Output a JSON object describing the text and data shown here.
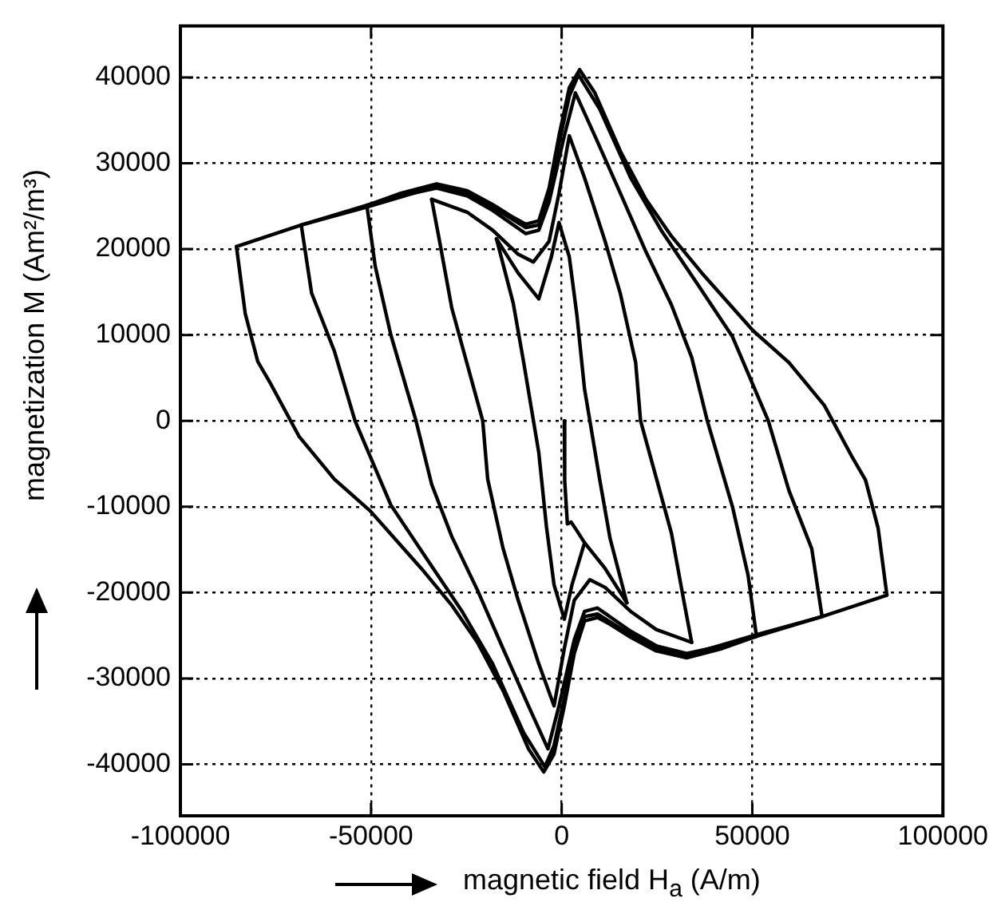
{
  "chart_data": {
    "type": "line",
    "xlabel": "magnetic field H$_{a}$ (A/m)",
    "ylabel": "magnetization M (Am²/m³)",
    "xlim": [
      -100000,
      100000
    ],
    "xticks": [
      -100000,
      -50000,
      0,
      50000,
      100000
    ],
    "ylim": [
      -46000,
      46000
    ],
    "yticks": [
      -40000,
      -30000,
      -20000,
      -10000,
      0,
      10000,
      20000,
      30000,
      40000
    ],
    "grid": true,
    "legend": false,
    "marker": "none",
    "line_style": "solid",
    "series": [
      {
        "color": "#000000",
        "x": [
          -85300,
          -68300,
          -51100,
          -42200,
          -32800,
          -24800,
          -18100,
          -12700,
          -9400,
          -6000,
          -3300,
          -700,
          2000,
          4700,
          8700,
          15400,
          22100,
          28800,
          36800,
          50200,
          59600,
          68900,
          76300,
          79700,
          83000,
          85300
        ],
        "values": [
          20300,
          22800,
          25100,
          26500,
          27600,
          26800,
          25200,
          23700,
          22900,
          23300,
          27100,
          33200,
          38800,
          40900,
          38200,
          31400,
          25800,
          21500,
          17200,
          10500,
          6800,
          1800,
          -4300,
          -6900,
          -12500,
          -20300
        ]
      },
      {
        "color": "#000000",
        "x": [
          -85300,
          -83000,
          -79700,
          -76300,
          -68900,
          -59600,
          -50200,
          -36800,
          -28800,
          -22100,
          -15400,
          -8700,
          -4700,
          -2000,
          700,
          3300,
          6000,
          9400,
          12700,
          18100,
          24800,
          32800,
          42200,
          51100,
          68300,
          85300
        ],
        "values": [
          20300,
          12500,
          6900,
          4300,
          -1800,
          -6800,
          -10500,
          -17200,
          -21500,
          -25800,
          -31400,
          -38200,
          -40900,
          -38800,
          -33200,
          -27100,
          -23300,
          -22900,
          -23700,
          -25200,
          -26800,
          -27600,
          -26500,
          -25100,
          -22800,
          -20300
        ]
      },
      {
        "color": "#000000",
        "x": [
          -68300,
          -51100,
          -32800,
          -24800,
          -18100,
          -9400,
          -6000,
          -3300,
          -700,
          2000,
          4400,
          10000,
          18100,
          26100,
          35500,
          44800,
          54200,
          59600,
          65600,
          68300
        ],
        "values": [
          22800,
          24900,
          27300,
          26500,
          24900,
          22500,
          22800,
          26500,
          32300,
          37800,
          40300,
          36300,
          28300,
          22200,
          16000,
          9800,
          0,
          -8100,
          -14900,
          -22800
        ]
      },
      {
        "color": "#000000",
        "x": [
          -68300,
          -65600,
          -59600,
          -54200,
          -44800,
          -35500,
          -26100,
          -18100,
          -10000,
          -4400,
          -2000,
          700,
          3300,
          6000,
          9400,
          18100,
          24800,
          32800,
          51100,
          68300
        ],
        "values": [
          22800,
          14900,
          8100,
          0,
          -9800,
          -16000,
          -22200,
          -28300,
          -36300,
          -40300,
          -37800,
          -32300,
          -26500,
          -22800,
          -22500,
          -24900,
          -26500,
          -27300,
          -24900,
          -22800
        ]
      },
      {
        "color": "#000000",
        "x": [
          -51100,
          -42200,
          -32800,
          -24800,
          -18100,
          -9400,
          -6000,
          -3300,
          700,
          3600,
          8700,
          15400,
          22100,
          28800,
          34100,
          38200,
          44800,
          48900,
          51100
        ],
        "values": [
          25100,
          26200,
          27100,
          26200,
          24500,
          21800,
          22200,
          25500,
          33200,
          38200,
          33200,
          26500,
          19700,
          13500,
          7400,
          0,
          -10000,
          -18000,
          -25100
        ]
      },
      {
        "color": "#000000",
        "x": [
          -51100,
          -48900,
          -44800,
          -38200,
          -34100,
          -28800,
          -22100,
          -15400,
          -8700,
          -3600,
          -700,
          3300,
          6000,
          9400,
          18100,
          24800,
          32800,
          42200,
          51100
        ],
        "values": [
          25100,
          18000,
          10000,
          0,
          -7400,
          -13500,
          -19700,
          -26500,
          -33200,
          -38200,
          -33200,
          -25500,
          -22200,
          -21800,
          -24500,
          -26200,
          -27100,
          -26200,
          -25100
        ]
      },
      {
        "color": "#000000",
        "x": [
          -34100,
          -24800,
          -18100,
          -11400,
          -7400,
          -3300,
          -700,
          2000,
          6000,
          11400,
          15400,
          19400,
          20700,
          28800,
          32100,
          34100
        ],
        "values": [
          25800,
          24300,
          22200,
          19400,
          18500,
          20900,
          26500,
          33200,
          28300,
          20900,
          14800,
          6800,
          0,
          -13100,
          -21100,
          -25800
        ]
      },
      {
        "color": "#000000",
        "x": [
          -34100,
          -32100,
          -28800,
          -20700,
          -19400,
          -15400,
          -11400,
          -6000,
          -2000,
          700,
          3300,
          7400,
          11400,
          18100,
          24800,
          34100
        ],
        "values": [
          25800,
          21100,
          13100,
          0,
          -6800,
          -14800,
          -20900,
          -28300,
          -33200,
          -26500,
          -20900,
          -18500,
          -19400,
          -22200,
          -24300,
          -25800
        ]
      },
      {
        "color": "#000000",
        "x": [
          -17100,
          -11400,
          -6000,
          -2700,
          -700,
          2000,
          4000,
          6000,
          7400,
          10000,
          12700,
          17100
        ],
        "values": [
          21200,
          17200,
          14200,
          19100,
          23100,
          19100,
          12300,
          3700,
          0,
          -6900,
          -13700,
          -21200
        ]
      },
      {
        "color": "#000000",
        "x": [
          -17100,
          -12700,
          -10000,
          -7400,
          -6000,
          -4000,
          -2000,
          700,
          2700,
          6000,
          11400,
          17100
        ],
        "values": [
          21200,
          13700,
          6900,
          0,
          -3700,
          -12300,
          -19100,
          -23100,
          -19100,
          -14200,
          -17200,
          -21200
        ]
      },
      {
        "color": "#000000",
        "x": [
          700,
          800,
          1500,
          2500,
          4000,
          6000
        ],
        "values": [
          0,
          -7000,
          -12000,
          -11800,
          -12800,
          -14200
        ]
      }
    ]
  }
}
